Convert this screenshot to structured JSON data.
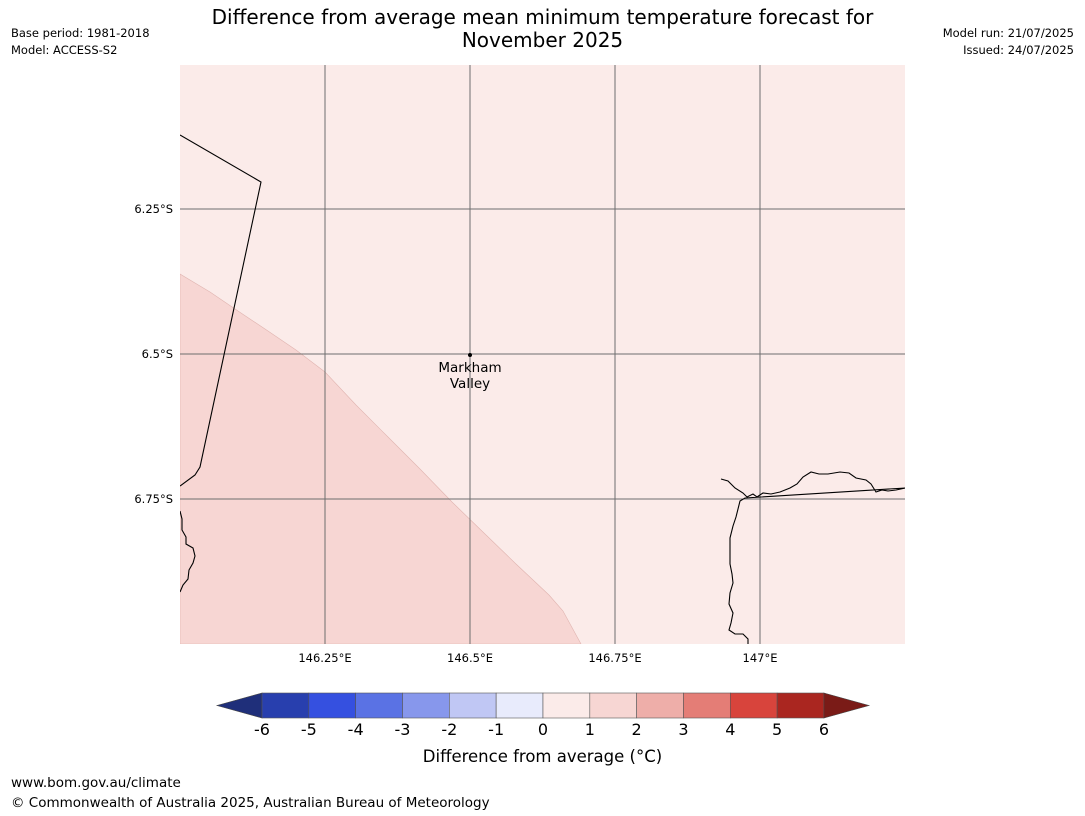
{
  "header": {
    "title_line1": "Difference from average mean minimum temperature forecast for",
    "title_line2": "November 2025",
    "base_period": "Base period: 1981-2018",
    "model": "Model: ACCESS-S2",
    "model_run": "Model run: 21/07/2025",
    "issued": "Issued: 24/07/2025"
  },
  "map": {
    "lon_ticks": [
      "146.25°E",
      "146.5°E",
      "146.75°E",
      "147°E"
    ],
    "lat_ticks": [
      "6.25°S",
      "6.5°S",
      "6.75°S"
    ],
    "place_label_line1": "Markham",
    "place_label_line2": "Valley",
    "fill_colors": {
      "anomaly_1_to_2": "#f7d6d3",
      "anomaly_0_to_1": "#fbebe9"
    }
  },
  "colorbar": {
    "ticks": [
      "-6",
      "-5",
      "-4",
      "-3",
      "-2",
      "-1",
      "0",
      "1",
      "2",
      "3",
      "4",
      "5",
      "6"
    ],
    "colors": [
      "#1f2f7a",
      "#283fae",
      "#3550e0",
      "#5a72e4",
      "#8797ec",
      "#c0c7f4",
      "#e8ebfc",
      "#fbebe9",
      "#f7d6d3",
      "#eeaea9",
      "#e47d76",
      "#d8443c",
      "#aa2620",
      "#7a1b17"
    ],
    "label": "Difference from average (°C)"
  },
  "footer": {
    "url": "www.bom.gov.au/climate",
    "copyright": "© Commonwealth of Australia 2025, Australian Bureau of Meteorology"
  }
}
